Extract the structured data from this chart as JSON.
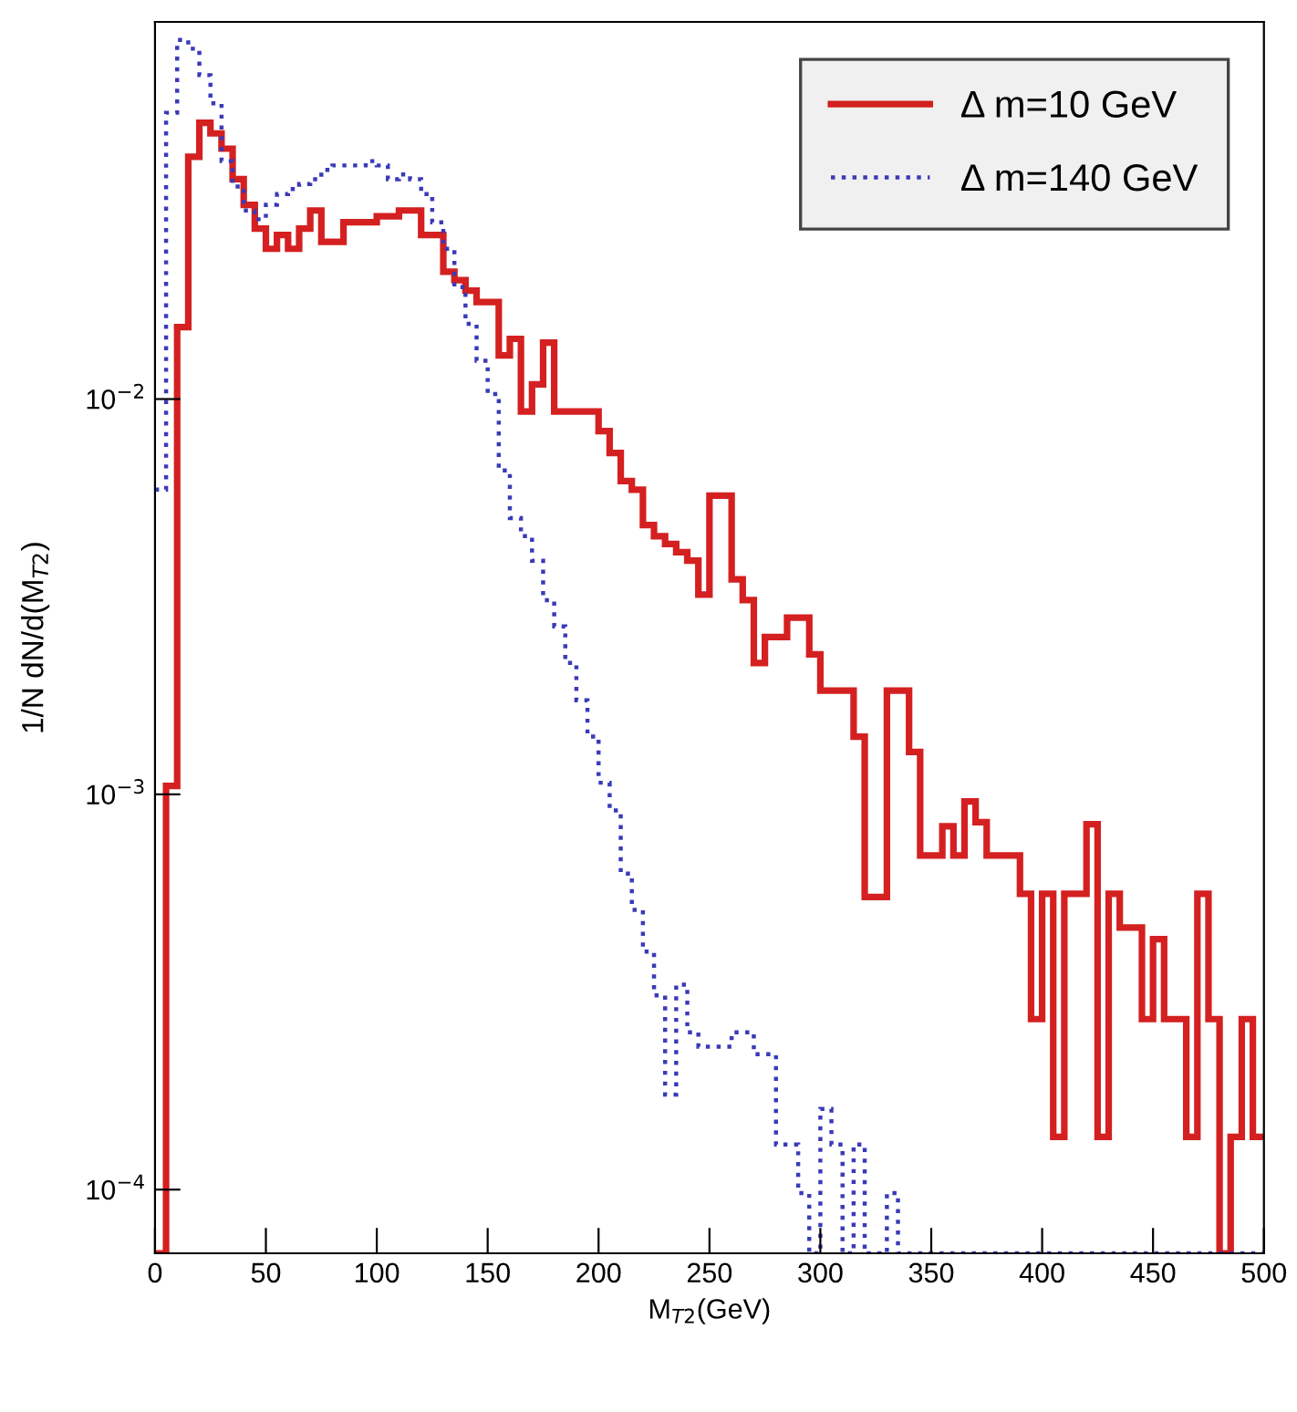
{
  "chart_data": {
    "type": "histogram",
    "xlabel": "M$_{T2}$(GeV)",
    "ylabel": "1/N dN/d(M$_{T2}$)",
    "bins": [
      0,
      5,
      10,
      15,
      20,
      25,
      30,
      35,
      40,
      45,
      50,
      55,
      60,
      65,
      70,
      75,
      80,
      85,
      90,
      95,
      100,
      105,
      110,
      115,
      120,
      125,
      130,
      135,
      140,
      145,
      150,
      155,
      160,
      165,
      170,
      175,
      180,
      185,
      190,
      195,
      200,
      205,
      210,
      215,
      220,
      225,
      230,
      235,
      240,
      245,
      250,
      255,
      260,
      265,
      270,
      275,
      280,
      285,
      290,
      295,
      300,
      305,
      310,
      315,
      320,
      325,
      330,
      335,
      340,
      345,
      350,
      355,
      360,
      365,
      370,
      375,
      380,
      385,
      390,
      395,
      400,
      405,
      410,
      415,
      420,
      425,
      430,
      435,
      440,
      445,
      450,
      455,
      460,
      465,
      470,
      475,
      480,
      485,
      490,
      495,
      500
    ],
    "series": [
      {
        "name": "Δ m=10 GeV",
        "color": "#d42020",
        "line_style": "solid",
        "values": [
          null,
          0.00105,
          0.0152,
          0.041,
          0.05,
          0.047,
          0.043,
          0.036,
          0.031,
          0.027,
          0.024,
          0.026,
          0.024,
          0.027,
          0.03,
          0.025,
          0.025,
          0.028,
          0.028,
          0.028,
          0.029,
          0.029,
          0.03,
          0.03,
          0.026,
          0.026,
          0.021,
          0.02,
          0.0188,
          0.0176,
          0.0176,
          0.0129,
          0.0142,
          0.0093,
          0.0109,
          0.0139,
          0.0093,
          0.0093,
          0.0093,
          0.0093,
          0.0083,
          0.0073,
          0.0062,
          0.0059,
          0.0048,
          0.0045,
          0.0043,
          0.0041,
          0.0039,
          0.0032,
          0.0057,
          0.0057,
          0.0035,
          0.0031,
          0.00215,
          0.0025,
          0.0025,
          0.0028,
          0.0028,
          0.00226,
          0.00183,
          0.00183,
          0.00183,
          0.0014,
          0.00055,
          0.00055,
          0.00183,
          0.00183,
          0.00128,
          0.0007,
          0.0007,
          0.00083,
          0.0007,
          0.00096,
          0.00085,
          0.0007,
          0.0007,
          0.0007,
          0.00056,
          0.00027,
          0.00056,
          0.000136,
          0.00056,
          0.00056,
          0.00084,
          0.000136,
          0.00056,
          0.00046,
          0.00046,
          0.00027,
          0.00043,
          0.00027,
          0.00027,
          0.000136,
          0.00056,
          0.00027,
          null,
          0.000136,
          0.00027,
          0.000136
        ]
      },
      {
        "name": "Δ m=140 GeV",
        "color": "#3a3ab8",
        "line_style": "dotted",
        "values": [
          0.0059,
          0.053,
          0.081,
          0.077,
          0.066,
          0.056,
          0.04,
          0.0345,
          0.03,
          0.0285,
          0.031,
          0.033,
          0.034,
          0.035,
          0.036,
          0.038,
          0.039,
          0.039,
          0.039,
          0.04,
          0.039,
          0.036,
          0.037,
          0.036,
          0.033,
          0.028,
          0.024,
          0.0192,
          0.0155,
          0.0125,
          0.0103,
          0.0066,
          0.005,
          0.0045,
          0.0039,
          0.0031,
          0.00266,
          0.00215,
          0.00173,
          0.0014,
          0.00107,
          0.00091,
          0.00063,
          0.00051,
          0.0004,
          0.00031,
          0.000174,
          0.00033,
          0.00025,
          0.00023,
          0.00023,
          0.00023,
          0.00025,
          0.00025,
          0.00022,
          0.00022,
          0.00013,
          0.00013,
          9.8e-05,
          null,
          0.00016,
          0.00013,
          null,
          0.00013,
          null,
          null,
          9.8e-05,
          null,
          null,
          null,
          null,
          null,
          null,
          null,
          null,
          null,
          null,
          null,
          null,
          null,
          null,
          null,
          null,
          null,
          null,
          null,
          null,
          null,
          null,
          null,
          null,
          null,
          null,
          null,
          null,
          null,
          null,
          null,
          null,
          null
        ]
      }
    ],
    "log": "y",
    "xlim": [
      0,
      500
    ],
    "ylim": [
      6.9e-05,
      0.09
    ],
    "xticks": [
      0,
      50,
      100,
      150,
      200,
      250,
      300,
      350,
      400,
      450,
      500
    ],
    "yticks": [
      {
        "value": 0.0001,
        "label": "10$^{−4}$"
      },
      {
        "value": 0.001,
        "label": "10$^{−3}$"
      },
      {
        "value": 0.01,
        "label": "10$^{−2}$"
      }
    ],
    "legend": "top right"
  }
}
